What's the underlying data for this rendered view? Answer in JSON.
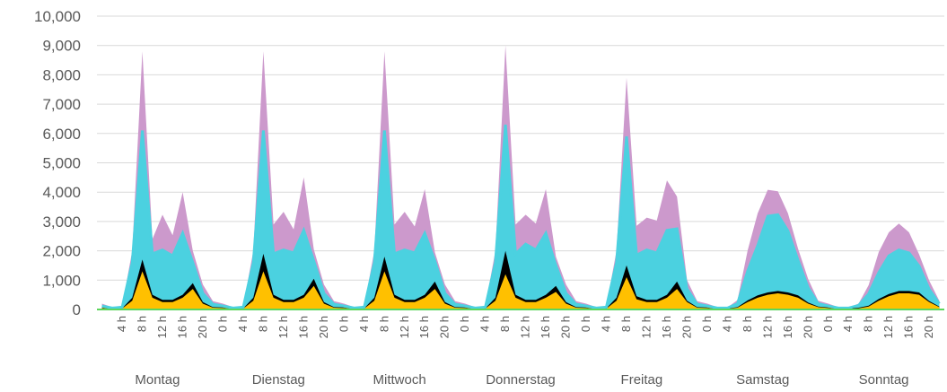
{
  "chart_data": {
    "type": "area",
    "stacked": true,
    "title": "",
    "xlabel": "",
    "ylabel": "",
    "ylim": [
      0,
      10000
    ],
    "y_ticks": [
      "0",
      "1,000",
      "2,000",
      "3,000",
      "4,000",
      "5,000",
      "6,000",
      "7,000",
      "8,000",
      "9,000",
      "10,000"
    ],
    "grid": true,
    "legend": "none",
    "x_hour_labels": [
      "0 h",
      "4 h",
      "8 h",
      "12 h",
      "16 h",
      "20 h"
    ],
    "hour_step": 2,
    "days": [
      "Montag",
      "Dienstag",
      "Mittwoch",
      "Donnerstag",
      "Freitag",
      "Samstag",
      "Sonntag"
    ],
    "series": [
      {
        "color": "#ffc000",
        "values": [
          [
            50,
            20,
            30,
            300,
            1300,
            400,
            250,
            250,
            400,
            700,
            200,
            60
          ],
          [
            50,
            20,
            30,
            300,
            1300,
            400,
            250,
            250,
            400,
            800,
            200,
            60
          ],
          [
            50,
            20,
            30,
            300,
            1300,
            400,
            250,
            250,
            400,
            700,
            200,
            60
          ],
          [
            50,
            20,
            30,
            300,
            1200,
            400,
            250,
            250,
            400,
            600,
            200,
            60
          ],
          [
            50,
            20,
            30,
            300,
            1100,
            350,
            250,
            250,
            400,
            700,
            250,
            60
          ],
          [
            50,
            20,
            20,
            60,
            250,
            400,
            500,
            550,
            500,
            400,
            200,
            80
          ],
          [
            50,
            20,
            20,
            40,
            100,
            300,
            450,
            550,
            550,
            500,
            250,
            80
          ]
        ]
      },
      {
        "color": "#000000",
        "values": [
          [
            20,
            10,
            10,
            100,
            400,
            100,
            80,
            80,
            100,
            200,
            50,
            20
          ],
          [
            20,
            10,
            10,
            100,
            600,
            100,
            80,
            80,
            100,
            250,
            50,
            20
          ],
          [
            20,
            10,
            10,
            100,
            500,
            100,
            80,
            80,
            100,
            250,
            50,
            20
          ],
          [
            20,
            10,
            10,
            100,
            800,
            100,
            80,
            80,
            100,
            200,
            50,
            20
          ],
          [
            20,
            10,
            10,
            100,
            400,
            100,
            80,
            80,
            100,
            250,
            50,
            20
          ],
          [
            20,
            10,
            10,
            20,
            60,
            80,
            80,
            80,
            80,
            80,
            40,
            20
          ],
          [
            20,
            10,
            10,
            20,
            30,
            60,
            80,
            80,
            80,
            80,
            40,
            20
          ]
        ]
      },
      {
        "color": "#4bd1e0",
        "values": [
          [
            50,
            20,
            40,
            1200,
            4400,
            1400,
            1700,
            1500,
            2100,
            700,
            300,
            100
          ],
          [
            50,
            20,
            40,
            1200,
            4200,
            1400,
            1700,
            1600,
            2200,
            600,
            300,
            100
          ],
          [
            50,
            20,
            40,
            1200,
            4300,
            1400,
            1700,
            1600,
            2100,
            700,
            300,
            100
          ],
          [
            50,
            20,
            40,
            1200,
            4300,
            1400,
            1900,
            1700,
            2100,
            700,
            300,
            100
          ],
          [
            50,
            20,
            40,
            1200,
            4400,
            1400,
            1700,
            1600,
            2200,
            1800,
            400,
            100
          ],
          [
            50,
            20,
            20,
            120,
            1000,
            1700,
            2600,
            2600,
            2100,
            1200,
            500,
            100
          ],
          [
            50,
            20,
            20,
            80,
            400,
            900,
            1300,
            1400,
            1300,
            900,
            400,
            100
          ]
        ]
      },
      {
        "color": "#cc99cc",
        "values": [
          [
            80,
            30,
            40,
            400,
            2700,
            500,
            1200,
            700,
            1400,
            400,
            300,
            100
          ],
          [
            80,
            30,
            40,
            400,
            2700,
            1000,
            1300,
            800,
            1800,
            400,
            300,
            100
          ],
          [
            80,
            30,
            40,
            400,
            2700,
            1000,
            1300,
            900,
            1500,
            300,
            300,
            100
          ],
          [
            80,
            30,
            40,
            400,
            2700,
            1000,
            1000,
            900,
            1500,
            300,
            300,
            100
          ],
          [
            80,
            30,
            40,
            400,
            2000,
            1000,
            1100,
            1100,
            1700,
            1100,
            300,
            100
          ],
          [
            80,
            30,
            20,
            120,
            700,
            1100,
            900,
            800,
            600,
            400,
            300,
            100
          ],
          [
            80,
            30,
            20,
            60,
            300,
            700,
            800,
            900,
            700,
            400,
            300,
            100
          ]
        ]
      }
    ]
  }
}
